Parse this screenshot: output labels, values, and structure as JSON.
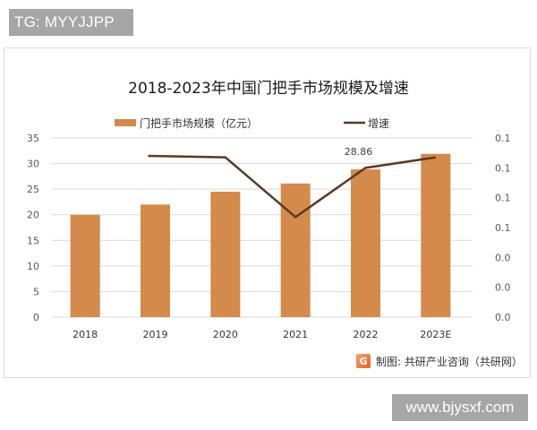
{
  "watermark_tags": {
    "top": "TG: MYYJJPP",
    "bottom": "www.bjysxf.com"
  },
  "source": {
    "logo_glyph": "G",
    "text": "制图: 共研产业咨询（共研网）"
  },
  "colors": {
    "bar": "#d48a4b",
    "line": "#5a3a22",
    "grid": "#d9d9d9",
    "axis_text": "#595959"
  },
  "chart_data": {
    "type": "bar",
    "title": "2018-2023年中国门把手市场规模及增速",
    "categories": [
      "2018",
      "2019",
      "2020",
      "2021",
      "2022",
      "2023E"
    ],
    "series": [
      {
        "name": "门把手市场规模（亿元）",
        "type": "bar",
        "axis": "left",
        "values": [
          20.0,
          22.0,
          24.5,
          26.1,
          28.86,
          31.9
        ]
      },
      {
        "name": "增速",
        "type": "line",
        "axis": "right",
        "values": [
          null,
          0.108,
          0.107,
          0.067,
          0.1,
          0.107
        ]
      }
    ],
    "data_labels": [
      {
        "category": "2022",
        "series": "门把手市场规模（亿元）",
        "text": "28.86"
      }
    ],
    "left_axis": {
      "ylim": [
        0,
        35
      ],
      "ticks": [
        "0",
        "5",
        "10",
        "15",
        "20",
        "25",
        "30",
        "35"
      ]
    },
    "right_axis": {
      "ylim": [
        0,
        0.12
      ],
      "ticks": [
        "0.0",
        "0.0",
        "0.0",
        "0.1",
        "0.1",
        "0.1",
        "0.1"
      ]
    },
    "xlabel": "",
    "ylabel": "",
    "grid": true,
    "legend_position": "top",
    "legend": [
      "门把手市场规模（亿元）",
      "增速"
    ]
  }
}
